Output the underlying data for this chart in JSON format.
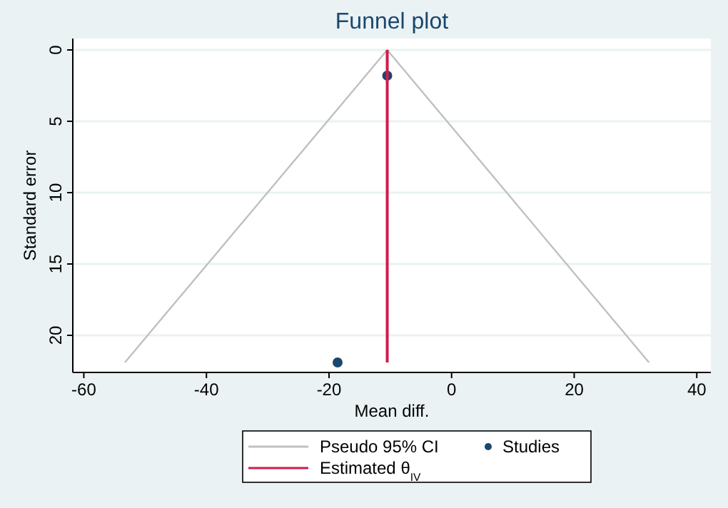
{
  "chart_data": {
    "type": "line",
    "title": "Funnel plot",
    "xlabel": "Mean diff.",
    "ylabel": "Standard error",
    "xlim": [
      -61.8,
      42.3
    ],
    "xticks": [
      -60,
      -40,
      -20,
      0,
      20,
      40
    ],
    "ylim": [
      22.6,
      -0.8
    ],
    "yticks": [
      0,
      5,
      10,
      15,
      20
    ],
    "grid": "y",
    "legend": "bottom",
    "line_style": "solid",
    "series": [
      {
        "name": "Pseudo 95% CI",
        "color": "#c0c0c0",
        "x": [
          -53.3,
          -10.5,
          32.2
        ],
        "values": [
          21.9,
          0,
          21.9
        ]
      },
      {
        "name": "Studies",
        "type": "scatter",
        "marker": "circle",
        "color": "#1a476f",
        "x": [
          -10.5,
          -18.6
        ],
        "values": [
          1.8,
          21.9
        ]
      },
      {
        "name": "Estimated θ$_{IV}$",
        "color": "#d01c4b",
        "x": [
          -10.5,
          -10.5
        ],
        "values": [
          0,
          21.9
        ]
      }
    ]
  }
}
